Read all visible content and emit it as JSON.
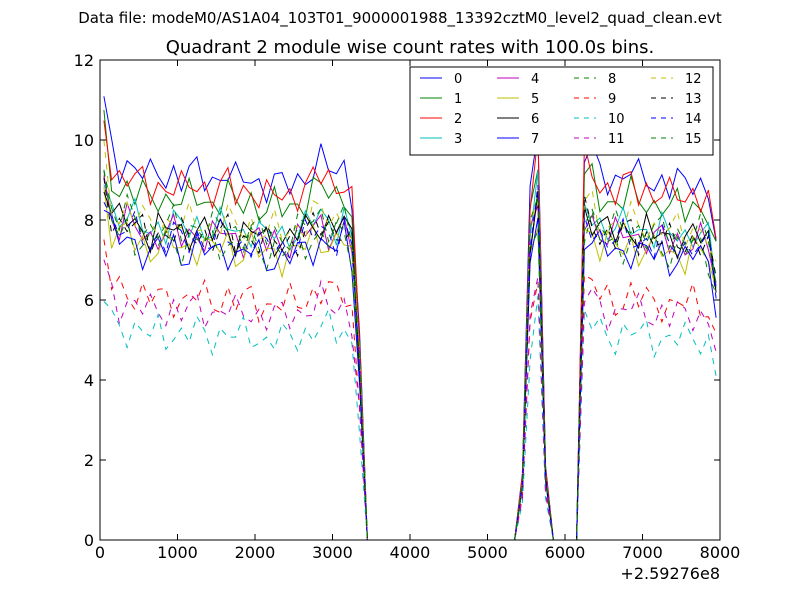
{
  "suptitle": "Data file: modeM0/AS1A04_103T01_9000001988_13392cztM0_level2_quad_clean.evt",
  "chart_data": {
    "type": "line",
    "title": "Quadrant 2 module wise count rates with 100.0s bins.",
    "xlabel": "",
    "ylabel": "",
    "xlim": [
      0,
      8000
    ],
    "ylim": [
      0,
      12
    ],
    "x_offset_label": "+2.59276e8",
    "xticks": [
      "0",
      "1000",
      "2000",
      "3000",
      "4000",
      "5000",
      "6000",
      "7000",
      "8000"
    ],
    "yticks": [
      "0",
      "2",
      "4",
      "6",
      "8",
      "10",
      "12"
    ],
    "grid": false,
    "legend_position": "top-right",
    "legend_columns": 4,
    "x": [
      50,
      150,
      250,
      350,
      450,
      550,
      650,
      750,
      850,
      950,
      1050,
      1150,
      1250,
      1350,
      1450,
      1550,
      1650,
      1750,
      1850,
      1950,
      2050,
      2150,
      2250,
      2350,
      2450,
      2550,
      2650,
      2750,
      2850,
      2950,
      3050,
      3150,
      3250,
      3350,
      3450,
      3550,
      3650,
      3750,
      3850,
      3950,
      4050,
      4150,
      4250,
      4350,
      4450,
      4550,
      4650,
      4750,
      4850,
      4950,
      5050,
      5150,
      5250,
      5350,
      5450,
      5550,
      5650,
      5750,
      5850,
      5950,
      6050,
      6150,
      6250,
      6350,
      6450,
      6550,
      6650,
      6750,
      6850,
      6950,
      7050,
      7150,
      7250,
      7350,
      7450,
      7550,
      7650,
      7750,
      7850,
      7950
    ],
    "series": [
      {
        "name": "0",
        "color": "#0000ff",
        "dash": "solid",
        "mean": 9.2
      },
      {
        "name": "1",
        "color": "#008000",
        "dash": "solid",
        "mean": 8.6
      },
      {
        "name": "2",
        "color": "#ff0000",
        "dash": "solid",
        "mean": 8.9
      },
      {
        "name": "3",
        "color": "#00bfbf",
        "dash": "solid",
        "mean": 7.9
      },
      {
        "name": "4",
        "color": "#bf00bf",
        "dash": "solid",
        "mean": 7.7
      },
      {
        "name": "5",
        "color": "#bfbf00",
        "dash": "solid",
        "mean": 7.4
      },
      {
        "name": "6",
        "color": "#000000",
        "dash": "solid",
        "mean": 7.8
      },
      {
        "name": "7",
        "color": "#0000ff",
        "dash": "solid",
        "mean": 7.3
      },
      {
        "name": "8",
        "color": "#008000",
        "dash": "dashed",
        "mean": 7.5
      },
      {
        "name": "9",
        "color": "#ff0000",
        "dash": "dashed",
        "mean": 6.1
      },
      {
        "name": "10",
        "color": "#00bfbf",
        "dash": "dashed",
        "mean": 5.2
      },
      {
        "name": "11",
        "color": "#bf00bf",
        "dash": "dashed",
        "mean": 5.8
      },
      {
        "name": "12",
        "color": "#bfbf00",
        "dash": "dashed",
        "mean": 8.0
      },
      {
        "name": "13",
        "color": "#000000",
        "dash": "dashed",
        "mean": 7.7
      },
      {
        "name": "14",
        "color": "#0000ff",
        "dash": "dashed",
        "mean": 7.6
      },
      {
        "name": "15",
        "color": "#008000",
        "dash": "dashed",
        "mean": 7.9
      }
    ],
    "shape_profile": [
      1.18,
      1.05,
      1.02,
      1.03,
      1.01,
      1.0,
      0.98,
      1.0,
      0.99,
      1.0,
      0.98,
      0.99,
      1.0,
      0.99,
      0.98,
      0.99,
      1.0,
      0.97,
      0.98,
      0.99,
      0.97,
      0.96,
      0.97,
      0.96,
      0.97,
      0.98,
      0.99,
      1.01,
      1.02,
      1.01,
      1.0,
      1.02,
      0.95,
      0.55,
      0.0,
      0.0,
      0.0,
      0.0,
      0.0,
      0.0,
      0.0,
      0.0,
      0.0,
      0.0,
      0.0,
      0.0,
      0.0,
      0.0,
      0.0,
      0.0,
      0.0,
      0.0,
      0.0,
      0.0,
      0.18,
      0.95,
      1.1,
      0.2,
      0.0,
      0.0,
      0.0,
      0.0,
      1.05,
      1.04,
      1.0,
      0.99,
      0.98,
      0.99,
      1.0,
      0.98,
      0.99,
      0.97,
      0.98,
      0.96,
      0.97,
      0.96,
      0.98,
      0.97,
      0.95,
      0.82
    ]
  }
}
